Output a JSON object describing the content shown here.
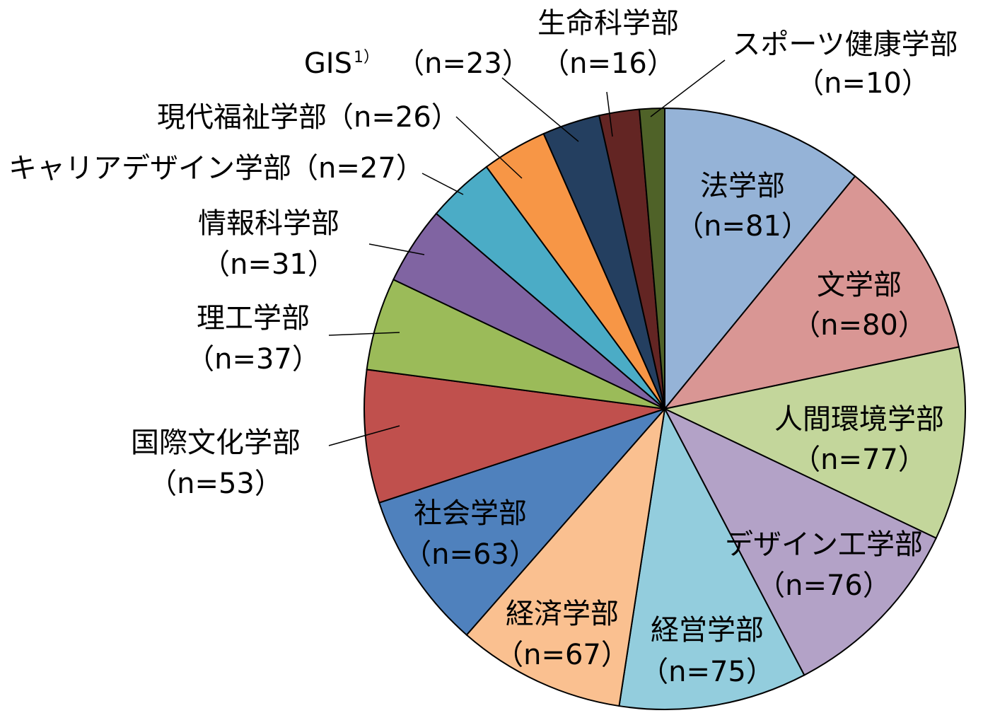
{
  "chart_data": {
    "type": "pie",
    "categories": [
      "法学部",
      "文学部",
      "人間環境学部",
      "デザイン工学部",
      "経営学部",
      "経済学部",
      "社会学部",
      "国際文化学部",
      "理工学部",
      "情報科学部",
      "キャリアデザイン学部",
      "現代福祉学部",
      "GIS",
      "生命科学部",
      "スポーツ健康学部"
    ],
    "values": [
      81,
      80,
      77,
      76,
      75,
      67,
      63,
      53,
      37,
      31,
      27,
      26,
      23,
      16,
      10
    ],
    "value_labels": [
      "（n=81）",
      "（n=80）",
      "（n=77）",
      "（n=76）",
      "（n=75）",
      "（n=67）",
      "（n=63）",
      "（n=53）",
      "（n=37）",
      "（n=31）",
      "（n=27）",
      "（n=26）",
      "（n=23）",
      "（n=16）",
      "（n=10）"
    ],
    "colors": [
      "#95b3d7",
      "#d99694",
      "#c3d69b",
      "#b3a2c7",
      "#93cddd",
      "#fac090",
      "#4f81bd",
      "#c0504d",
      "#9bbb59",
      "#8064a2",
      "#4bacc6",
      "#f79646",
      "#243f60",
      "#632523",
      "#4f6228"
    ],
    "annotations": [
      "1）"
    ]
  }
}
